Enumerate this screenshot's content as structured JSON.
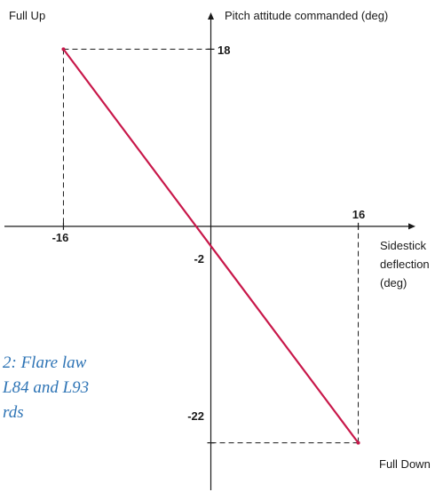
{
  "chart_data": {
    "type": "line",
    "title": "",
    "ylabel": "Pitch attitude commanded (deg)",
    "xlabel_lines": [
      "Sidestick",
      "deflection",
      "(deg)"
    ],
    "corner_labels": {
      "top_left": "Full Up",
      "bottom_right": "Full Down"
    },
    "x_ticks": [
      "-16",
      "16"
    ],
    "y_ticks": [
      "18",
      "-2",
      "-22"
    ],
    "xlim": [
      -22.5,
      22.5
    ],
    "ylim": [
      -27,
      23
    ],
    "grid": false,
    "series": [
      {
        "color": "#c8184a",
        "x": [
          -16,
          16
        ],
        "y": [
          18,
          -22
        ]
      }
    ],
    "guides": [
      {
        "x": -16,
        "y": 18
      },
      {
        "x": 16,
        "y": -22
      }
    ]
  },
  "caption_fragment": [
    "2: Flare law",
    "L84 and L93",
    "rds"
  ],
  "colors": {
    "axis": "#1a1a1a",
    "line": "#c8184a",
    "caption": "#2e74b5"
  }
}
